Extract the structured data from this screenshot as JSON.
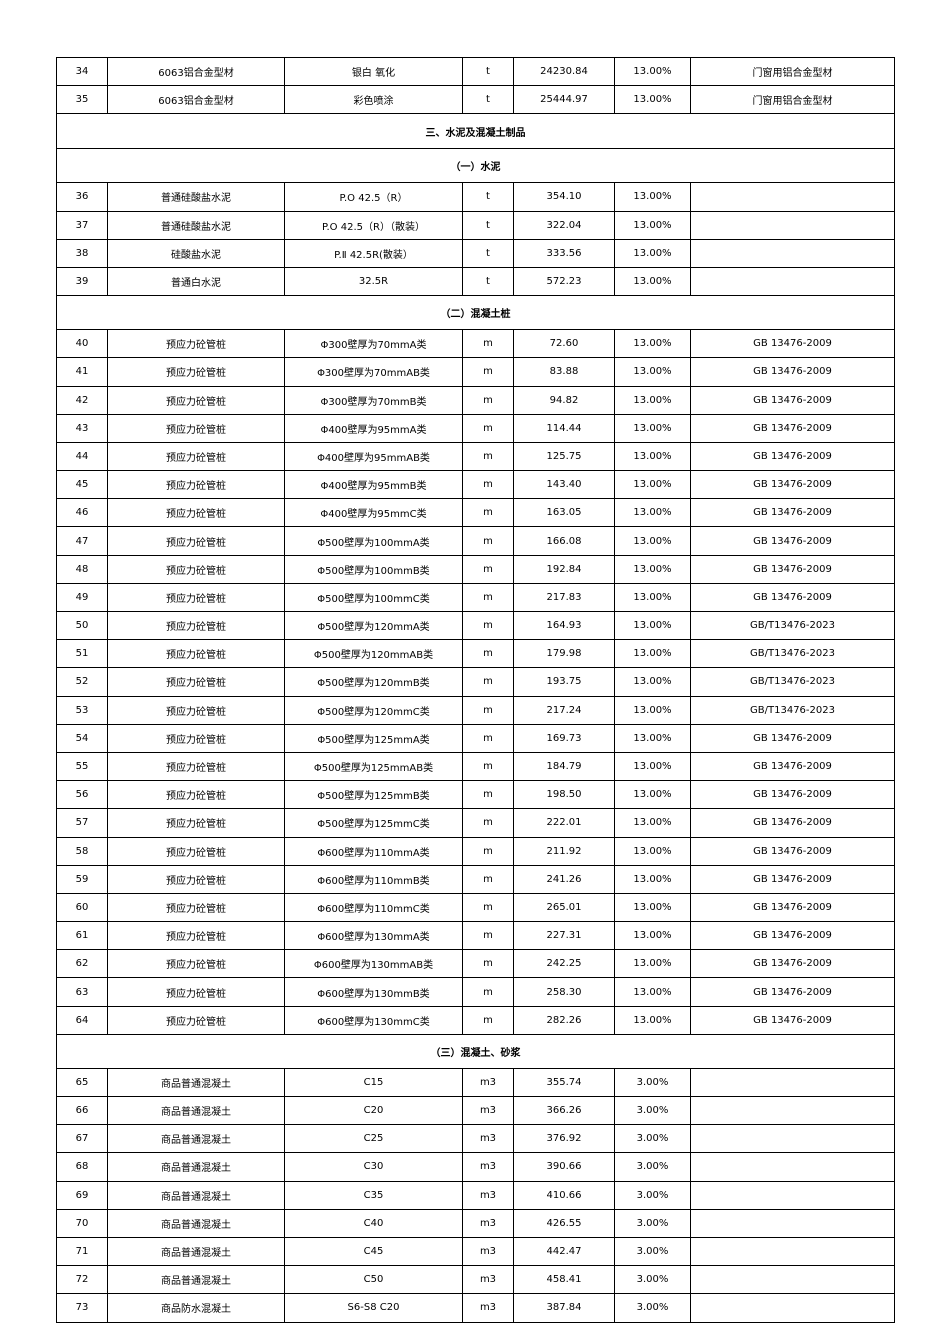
{
  "rows": [
    {
      "no": "34",
      "name": "6063铝合金型材",
      "spec": "银白 氧化",
      "unit": "t",
      "price": "24230.84",
      "tax": "13.00%",
      "note": "门窗用铝合金型材"
    },
    {
      "no": "35",
      "name": "6063铝合金型材",
      "spec": "彩色喷涂",
      "unit": "t",
      "price": "25444.97",
      "tax": "13.00%",
      "note": "门窗用铝合金型材"
    },
    {
      "section": "三、水泥及混凝土制品",
      "main": true
    },
    {
      "section": "（一）水泥"
    },
    {
      "no": "36",
      "name": "普通硅酸盐水泥",
      "spec": "P.O 42.5（R）",
      "unit": "t",
      "price": "354.10",
      "tax": "13.00%",
      "note": ""
    },
    {
      "no": "37",
      "name": "普通硅酸盐水泥",
      "spec": "P.O 42.5（R）（散装）",
      "unit": "t",
      "price": "322.04",
      "tax": "13.00%",
      "note": ""
    },
    {
      "no": "38",
      "name": "硅酸盐水泥",
      "spec": "P.Ⅱ 42.5R(散装）",
      "unit": "t",
      "price": "333.56",
      "tax": "13.00%",
      "note": ""
    },
    {
      "no": "39",
      "name": "普通白水泥",
      "spec": "32.5R",
      "unit": "t",
      "price": "572.23",
      "tax": "13.00%",
      "note": ""
    },
    {
      "section": "（二）混凝土桩"
    },
    {
      "no": "40",
      "name": "预应力砼管桩",
      "spec": "Φ300壁厚为70mmA类",
      "unit": "m",
      "price": "72.60",
      "tax": "13.00%",
      "note": "GB 13476-2009"
    },
    {
      "no": "41",
      "name": "预应力砼管桩",
      "spec": "Φ300壁厚为70mmAB类",
      "unit": "m",
      "price": "83.88",
      "tax": "13.00%",
      "note": "GB 13476-2009"
    },
    {
      "no": "42",
      "name": "预应力砼管桩",
      "spec": "Φ300壁厚为70mmB类",
      "unit": "m",
      "price": "94.82",
      "tax": "13.00%",
      "note": "GB 13476-2009"
    },
    {
      "no": "43",
      "name": "预应力砼管桩",
      "spec": "Φ400壁厚为95mmA类",
      "unit": "m",
      "price": "114.44",
      "tax": "13.00%",
      "note": "GB 13476-2009"
    },
    {
      "no": "44",
      "name": "预应力砼管桩",
      "spec": "Φ400壁厚为95mmAB类",
      "unit": "m",
      "price": "125.75",
      "tax": "13.00%",
      "note": "GB 13476-2009"
    },
    {
      "no": "45",
      "name": "预应力砼管桩",
      "spec": "Φ400壁厚为95mmB类",
      "unit": "m",
      "price": "143.40",
      "tax": "13.00%",
      "note": "GB 13476-2009"
    },
    {
      "no": "46",
      "name": "预应力砼管桩",
      "spec": "Φ400壁厚为95mmC类",
      "unit": "m",
      "price": "163.05",
      "tax": "13.00%",
      "note": "GB 13476-2009"
    },
    {
      "no": "47",
      "name": "预应力砼管桩",
      "spec": "Φ500壁厚为100mmA类",
      "unit": "m",
      "price": "166.08",
      "tax": "13.00%",
      "note": "GB 13476-2009"
    },
    {
      "no": "48",
      "name": "预应力砼管桩",
      "spec": "Φ500壁厚为100mmB类",
      "unit": "m",
      "price": "192.84",
      "tax": "13.00%",
      "note": "GB 13476-2009"
    },
    {
      "no": "49",
      "name": "预应力砼管桩",
      "spec": "Φ500壁厚为100mmC类",
      "unit": "m",
      "price": "217.83",
      "tax": "13.00%",
      "note": "GB 13476-2009"
    },
    {
      "no": "50",
      "name": "预应力砼管桩",
      "spec": "Φ500壁厚为120mmA类",
      "unit": "m",
      "price": "164.93",
      "tax": "13.00%",
      "note": "GB/T13476-2023"
    },
    {
      "no": "51",
      "name": "预应力砼管桩",
      "spec": "Φ500壁厚为120mmAB类",
      "unit": "m",
      "price": "179.98",
      "tax": "13.00%",
      "note": "GB/T13476-2023"
    },
    {
      "no": "52",
      "name": "预应力砼管桩",
      "spec": "Φ500壁厚为120mmB类",
      "unit": "m",
      "price": "193.75",
      "tax": "13.00%",
      "note": "GB/T13476-2023"
    },
    {
      "no": "53",
      "name": "预应力砼管桩",
      "spec": "Φ500壁厚为120mmC类",
      "unit": "m",
      "price": "217.24",
      "tax": "13.00%",
      "note": "GB/T13476-2023"
    },
    {
      "no": "54",
      "name": "预应力砼管桩",
      "spec": "Φ500壁厚为125mmA类",
      "unit": "m",
      "price": "169.73",
      "tax": "13.00%",
      "note": "GB 13476-2009"
    },
    {
      "no": "55",
      "name": "预应力砼管桩",
      "spec": "Φ500壁厚为125mmAB类",
      "unit": "m",
      "price": "184.79",
      "tax": "13.00%",
      "note": "GB 13476-2009"
    },
    {
      "no": "56",
      "name": "预应力砼管桩",
      "spec": "Φ500壁厚为125mmB类",
      "unit": "m",
      "price": "198.50",
      "tax": "13.00%",
      "note": "GB 13476-2009"
    },
    {
      "no": "57",
      "name": "预应力砼管桩",
      "spec": "Φ500壁厚为125mmC类",
      "unit": "m",
      "price": "222.01",
      "tax": "13.00%",
      "note": "GB 13476-2009"
    },
    {
      "no": "58",
      "name": "预应力砼管桩",
      "spec": "Φ600壁厚为110mmA类",
      "unit": "m",
      "price": "211.92",
      "tax": "13.00%",
      "note": "GB 13476-2009"
    },
    {
      "no": "59",
      "name": "预应力砼管桩",
      "spec": "Φ600壁厚为110mmB类",
      "unit": "m",
      "price": "241.26",
      "tax": "13.00%",
      "note": "GB 13476-2009"
    },
    {
      "no": "60",
      "name": "预应力砼管桩",
      "spec": "Φ600壁厚为110mmC类",
      "unit": "m",
      "price": "265.01",
      "tax": "13.00%",
      "note": "GB 13476-2009"
    },
    {
      "no": "61",
      "name": "预应力砼管桩",
      "spec": "Φ600壁厚为130mmA类",
      "unit": "m",
      "price": "227.31",
      "tax": "13.00%",
      "note": "GB 13476-2009"
    },
    {
      "no": "62",
      "name": "预应力砼管桩",
      "spec": "Φ600壁厚为130mmAB类",
      "unit": "m",
      "price": "242.25",
      "tax": "13.00%",
      "note": "GB 13476-2009"
    },
    {
      "no": "63",
      "name": "预应力砼管桩",
      "spec": "Φ600壁厚为130mmB类",
      "unit": "m",
      "price": "258.30",
      "tax": "13.00%",
      "note": "GB 13476-2009"
    },
    {
      "no": "64",
      "name": "预应力砼管桩",
      "spec": "Φ600壁厚为130mmC类",
      "unit": "m",
      "price": "282.26",
      "tax": "13.00%",
      "note": "GB 13476-2009"
    },
    {
      "section": "（三）混凝土、砂浆"
    },
    {
      "no": "65",
      "name": "商品普通混凝土",
      "spec": "C15",
      "unit": "m3",
      "price": "355.74",
      "tax": "3.00%",
      "note": ""
    },
    {
      "no": "66",
      "name": "商品普通混凝土",
      "spec": "C20",
      "unit": "m3",
      "price": "366.26",
      "tax": "3.00%",
      "note": ""
    },
    {
      "no": "67",
      "name": "商品普通混凝土",
      "spec": "C25",
      "unit": "m3",
      "price": "376.92",
      "tax": "3.00%",
      "note": ""
    },
    {
      "no": "68",
      "name": "商品普通混凝土",
      "spec": "C30",
      "unit": "m3",
      "price": "390.66",
      "tax": "3.00%",
      "note": ""
    },
    {
      "no": "69",
      "name": "商品普通混凝土",
      "spec": "C35",
      "unit": "m3",
      "price": "410.66",
      "tax": "3.00%",
      "note": ""
    },
    {
      "no": "70",
      "name": "商品普通混凝土",
      "spec": "C40",
      "unit": "m3",
      "price": "426.55",
      "tax": "3.00%",
      "note": ""
    },
    {
      "no": "71",
      "name": "商品普通混凝土",
      "spec": "C45",
      "unit": "m3",
      "price": "442.47",
      "tax": "3.00%",
      "note": ""
    },
    {
      "no": "72",
      "name": "商品普通混凝土",
      "spec": "C50",
      "unit": "m3",
      "price": "458.41",
      "tax": "3.00%",
      "note": ""
    },
    {
      "no": "73",
      "name": "商品防水混凝土",
      "spec": "S6-S8 C20",
      "unit": "m3",
      "price": "387.84",
      "tax": "3.00%",
      "note": ""
    }
  ]
}
